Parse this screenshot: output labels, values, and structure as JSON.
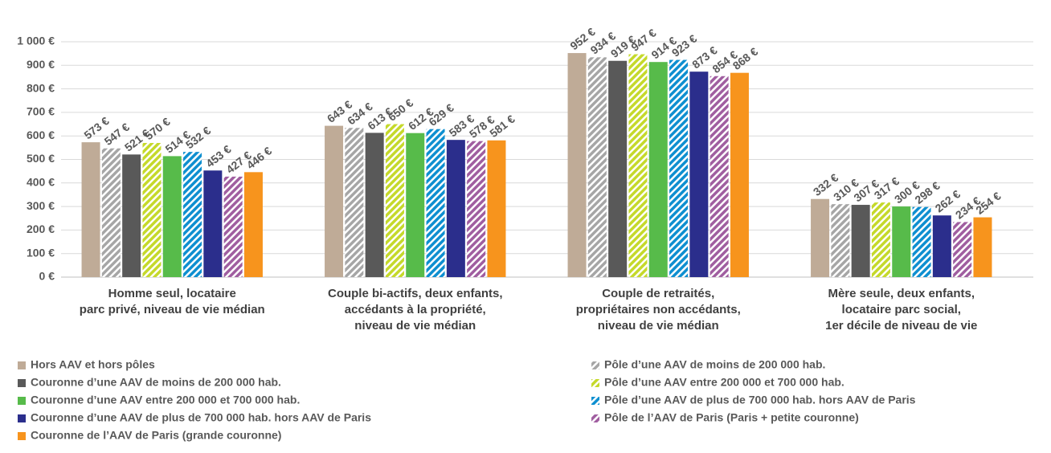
{
  "chart_data": {
    "type": "bar",
    "categories": [
      [
        "Homme seul, locataire",
        "parc privé, niveau de vie médian"
      ],
      [
        "Couple bi-actifs, deux enfants,",
        "accédants à la propriété,",
        "niveau de vie médian"
      ],
      [
        "Couple de retraités,",
        "propriétaires non accédants,",
        "niveau de vie médian"
      ],
      [
        "Mère seule, deux enfants,",
        "locataire parc social,",
        "1er décile de niveau de vie"
      ]
    ],
    "series": [
      {
        "name": "Hors AAV et hors pôles",
        "color": "#bfab97",
        "hatch": false,
        "values": [
          573,
          643,
          952,
          332
        ],
        "value_labels": [
          "573 €",
          "643 €",
          "952 €",
          "332 €"
        ]
      },
      {
        "name": "Pôle d’une AAV de moins de 200 000 hab.",
        "color": "#a6a6a6",
        "hatch": true,
        "values": [
          547,
          634,
          934,
          310
        ],
        "value_labels": [
          "547 €",
          "634 €",
          "934 €",
          "310 €"
        ]
      },
      {
        "name": "Couronne d’une AAV de moins de 200 000 hab.",
        "color": "#595959",
        "hatch": false,
        "values": [
          521,
          613,
          919,
          307
        ],
        "value_labels": [
          "521 €",
          "613 €",
          "919 €",
          "307 €"
        ]
      },
      {
        "name": "Pôle d’une AAV entre 200 000 et 700 000 hab.",
        "color": "#c5d92b",
        "hatch": true,
        "values": [
          570,
          650,
          947,
          317
        ],
        "value_labels": [
          "570 €",
          "650 €",
          "947 €",
          "317 €"
        ]
      },
      {
        "name": "Couronne d’une AAV entre 200 000 et 700 000 hab.",
        "color": "#57bb4a",
        "hatch": false,
        "values": [
          514,
          612,
          914,
          300
        ],
        "value_labels": [
          "514 €",
          "612 €",
          "914 €",
          "300 €"
        ]
      },
      {
        "name": "Pôle d’une AAV de plus de 700 000 hab. hors AAV de Paris",
        "color": "#0e8fd0",
        "hatch": true,
        "values": [
          532,
          629,
          923,
          298
        ],
        "value_labels": [
          "532 €",
          "629 €",
          "923 €",
          "298 €"
        ]
      },
      {
        "name": "Couronne d’une AAV de plus de 700 000 hab. hors AAV de Paris",
        "color": "#2b2e8c",
        "hatch": false,
        "values": [
          453,
          583,
          873,
          262
        ],
        "value_labels": [
          "453 €",
          "583 €",
          "873 €",
          "262 €"
        ]
      },
      {
        "name": "Pôle de l’AAV de Paris (Paris + petite couronne)",
        "color": "#a05ea0",
        "hatch": true,
        "values": [
          427,
          578,
          854,
          234
        ],
        "value_labels": [
          "427 €",
          "578 €",
          "854 €",
          "234 €"
        ]
      },
      {
        "name": "Couronne de l’AAV de Paris (grande couronne)",
        "color": "#f7941d",
        "hatch": false,
        "values": [
          446,
          581,
          868,
          254
        ],
        "value_labels": [
          "446 €",
          "581 €",
          "868 €",
          "254 €"
        ]
      }
    ],
    "ylim": [
      0,
      1000
    ],
    "yticks": [
      {
        "value": 0,
        "label": "0 €"
      },
      {
        "value": 100,
        "label": "100 €"
      },
      {
        "value": 200,
        "label": "200 €"
      },
      {
        "value": 300,
        "label": "300 €"
      },
      {
        "value": 400,
        "label": "400 €"
      },
      {
        "value": 500,
        "label": "500 €"
      },
      {
        "value": 600,
        "label": "600 €"
      },
      {
        "value": 700,
        "label": "700 €"
      },
      {
        "value": 800,
        "label": "800 €"
      },
      {
        "value": 900,
        "label": "900 €"
      },
      {
        "value": 1000,
        "label": {
          "value": 1000,
          "label": "1 000 €"
        }
      }
    ],
    "grid": true
  }
}
